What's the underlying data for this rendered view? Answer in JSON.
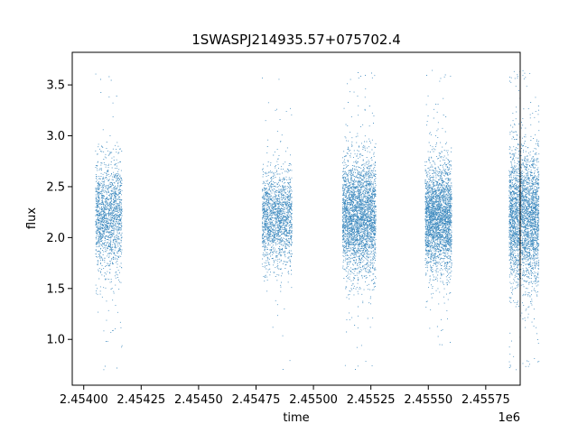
{
  "chart_data": {
    "type": "scatter",
    "title": "1SWASPJ214935.57+075702.4",
    "xlabel": "time",
    "ylabel": "flux",
    "x_offset_label": "1e6",
    "xlim": [
      2453950,
      2455900
    ],
    "ylim": [
      0.55,
      3.82
    ],
    "x_ticks": [
      2454000,
      2454250,
      2454500,
      2454750,
      2455000,
      2455250,
      2455500,
      2455750
    ],
    "x_tick_labels": [
      "2.45400",
      "2.45425",
      "2.45450",
      "2.45475",
      "2.45500",
      "2.45525",
      "2.45550",
      "2.45575"
    ],
    "y_ticks": [
      1.0,
      1.5,
      2.0,
      2.5,
      3.0,
      3.5
    ],
    "y_tick_labels": [
      "1.0",
      "1.5",
      "2.0",
      "2.5",
      "3.0",
      "3.5"
    ],
    "grid": false,
    "marker_color": "#1f77b4",
    "seasons": [
      {
        "x_start": 2454050,
        "x_end": 2454165,
        "center": 2.22,
        "spread": 0.27,
        "density": 1.0
      },
      {
        "x_start": 2454775,
        "x_end": 2454905,
        "center": 2.2,
        "spread": 0.22,
        "density": 1.1
      },
      {
        "x_start": 2455125,
        "x_end": 2455270,
        "center": 2.22,
        "spread": 0.28,
        "density": 2.0
      },
      {
        "x_start": 2455485,
        "x_end": 2455600,
        "center": 2.2,
        "spread": 0.26,
        "density": 1.7
      },
      {
        "x_start": 2455850,
        "x_end": 2455980,
        "center": 2.2,
        "spread": 0.33,
        "density": 1.9
      }
    ]
  }
}
